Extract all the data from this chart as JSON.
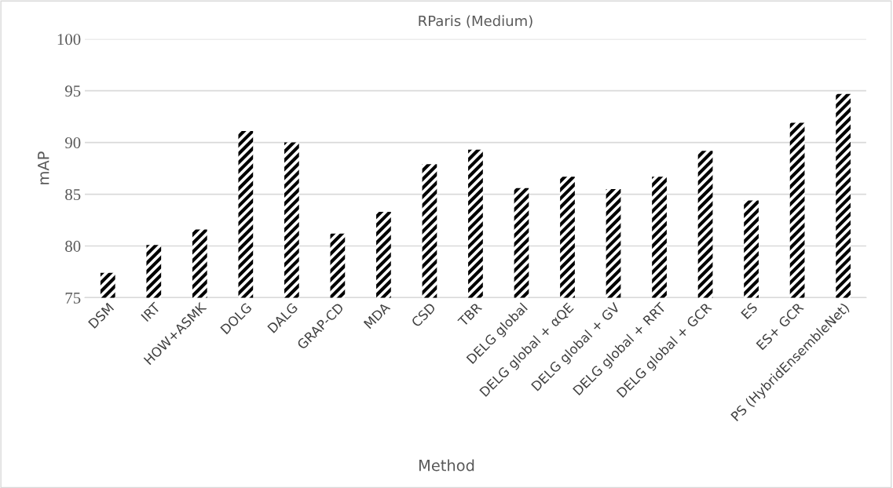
{
  "chart_data": {
    "type": "bar",
    "title": "RParis (Medium)",
    "xlabel": "Method",
    "ylabel": "mAP",
    "categories": [
      "DSM",
      "IRT",
      "HOW+ASMK",
      "DOLG",
      "DALG",
      "GRAP-CD",
      "MDA",
      "CSD",
      "TBR",
      "DELG global",
      "DELG global + αQE",
      "DELG global + GV",
      "DELG global + RRT",
      "DELG global + GCR",
      "ES",
      "ES+ GCR",
      "PS (HybridEnsembleNet)"
    ],
    "values": [
      77.4,
      80.1,
      81.6,
      91.1,
      90.0,
      81.2,
      83.3,
      87.9,
      89.3,
      85.6,
      86.7,
      85.5,
      86.7,
      89.2,
      84.4,
      91.9,
      94.7
    ],
    "color": "#000000",
    "ylim": [
      75,
      100
    ],
    "yticks": [
      75,
      80,
      85,
      90,
      95,
      100
    ],
    "grid": "y",
    "legend": false
  }
}
